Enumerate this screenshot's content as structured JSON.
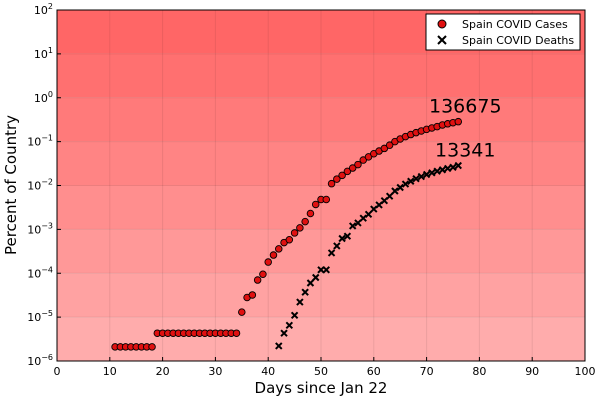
{
  "chart_data": {
    "type": "scatter",
    "xlabel": "Days since Jan 22",
    "ylabel": "Percent of Country",
    "xlim": [
      0,
      100
    ],
    "ylim_log10": [
      -6,
      2
    ],
    "y_scale": "log10",
    "x_ticks": [
      "0",
      "10",
      "20",
      "30",
      "40",
      "50",
      "60",
      "70",
      "80",
      "90",
      "100"
    ],
    "x_tick_values": [
      0,
      10,
      20,
      30,
      40,
      50,
      60,
      70,
      80,
      90,
      100
    ],
    "y_tick_exponents": [
      -6,
      -5,
      -4,
      -3,
      -2,
      -1,
      0,
      1,
      2
    ],
    "y_tick_labels": [
      "10",
      "10",
      "10",
      "10",
      "10",
      "10",
      "10",
      "10",
      "10"
    ],
    "y_tick_sups": [
      "−6",
      "−5",
      "−4",
      "−3",
      "−2",
      "−1",
      "0",
      "1",
      "2"
    ],
    "grid": true,
    "legend_position": "top-right",
    "background_colors": [
      "#ff6666",
      "#ff7070",
      "#ff7a7a",
      "#ff8484",
      "#ff8e8e",
      "#ff9898",
      "#ffa2a2",
      "#ffacac",
      "#ffb6b6"
    ],
    "series": [
      {
        "name": "Spain COVID Cases",
        "marker": "circle",
        "color": "#e01010",
        "x": [
          11,
          12,
          13,
          14,
          15,
          16,
          17,
          18,
          19,
          20,
          21,
          22,
          23,
          24,
          25,
          26,
          27,
          28,
          29,
          30,
          31,
          32,
          33,
          34,
          35,
          36,
          37,
          38,
          39,
          40,
          41,
          42,
          43,
          44,
          45,
          46,
          47,
          48,
          49,
          50,
          51,
          52,
          53,
          54,
          55,
          56,
          57,
          58,
          59,
          60,
          61,
          62,
          63,
          64,
          65,
          66,
          67,
          68,
          69,
          70,
          71,
          72,
          73,
          74,
          75,
          76
        ],
        "y": [
          2.1e-06,
          2.1e-06,
          2.1e-06,
          2.1e-06,
          2.1e-06,
          2.1e-06,
          2.1e-06,
          2.1e-06,
          4.3e-06,
          4.3e-06,
          4.3e-06,
          4.3e-06,
          4.3e-06,
          4.3e-06,
          4.3e-06,
          4.3e-06,
          4.3e-06,
          4.3e-06,
          4.3e-06,
          4.3e-06,
          4.3e-06,
          4.3e-06,
          4.3e-06,
          4.3e-06,
          1.3e-05,
          2.8e-05,
          3.2e-05,
          7e-05,
          9.5e-05,
          0.00018,
          0.00026,
          0.00036,
          0.0005,
          0.00058,
          0.00083,
          0.00108,
          0.0015,
          0.0023,
          0.0037,
          0.0048,
          0.0048,
          0.011,
          0.014,
          0.017,
          0.021,
          0.025,
          0.03,
          0.038,
          0.045,
          0.053,
          0.061,
          0.07,
          0.083,
          0.1,
          0.115,
          0.13,
          0.145,
          0.16,
          0.175,
          0.19,
          0.205,
          0.22,
          0.24,
          0.255,
          0.27,
          0.285
        ]
      },
      {
        "name": "Spain COVID Deaths",
        "marker": "x",
        "color": "#000000",
        "x": [
          42,
          43,
          44,
          45,
          46,
          47,
          48,
          49,
          50,
          51,
          52,
          53,
          54,
          55,
          56,
          57,
          58,
          59,
          60,
          61,
          62,
          63,
          64,
          65,
          66,
          67,
          68,
          69,
          70,
          71,
          72,
          73,
          74,
          75,
          76
        ],
        "y": [
          2.2e-06,
          4.3e-06,
          6.5e-06,
          1.1e-05,
          2.2e-05,
          3.7e-05,
          6e-05,
          8e-05,
          0.00012,
          0.00012,
          0.00029,
          0.00042,
          0.00062,
          0.0007,
          0.0012,
          0.0014,
          0.0018,
          0.0022,
          0.0029,
          0.0036,
          0.0045,
          0.0057,
          0.0075,
          0.009,
          0.0108,
          0.0125,
          0.0143,
          0.016,
          0.0178,
          0.0195,
          0.0212,
          0.0228,
          0.0245,
          0.026,
          0.0285
        ]
      }
    ],
    "annotations": [
      {
        "text": "136675",
        "x": 76,
        "y": 0.285
      },
      {
        "text": "13341",
        "x": 76,
        "y": 0.0285
      }
    ]
  }
}
